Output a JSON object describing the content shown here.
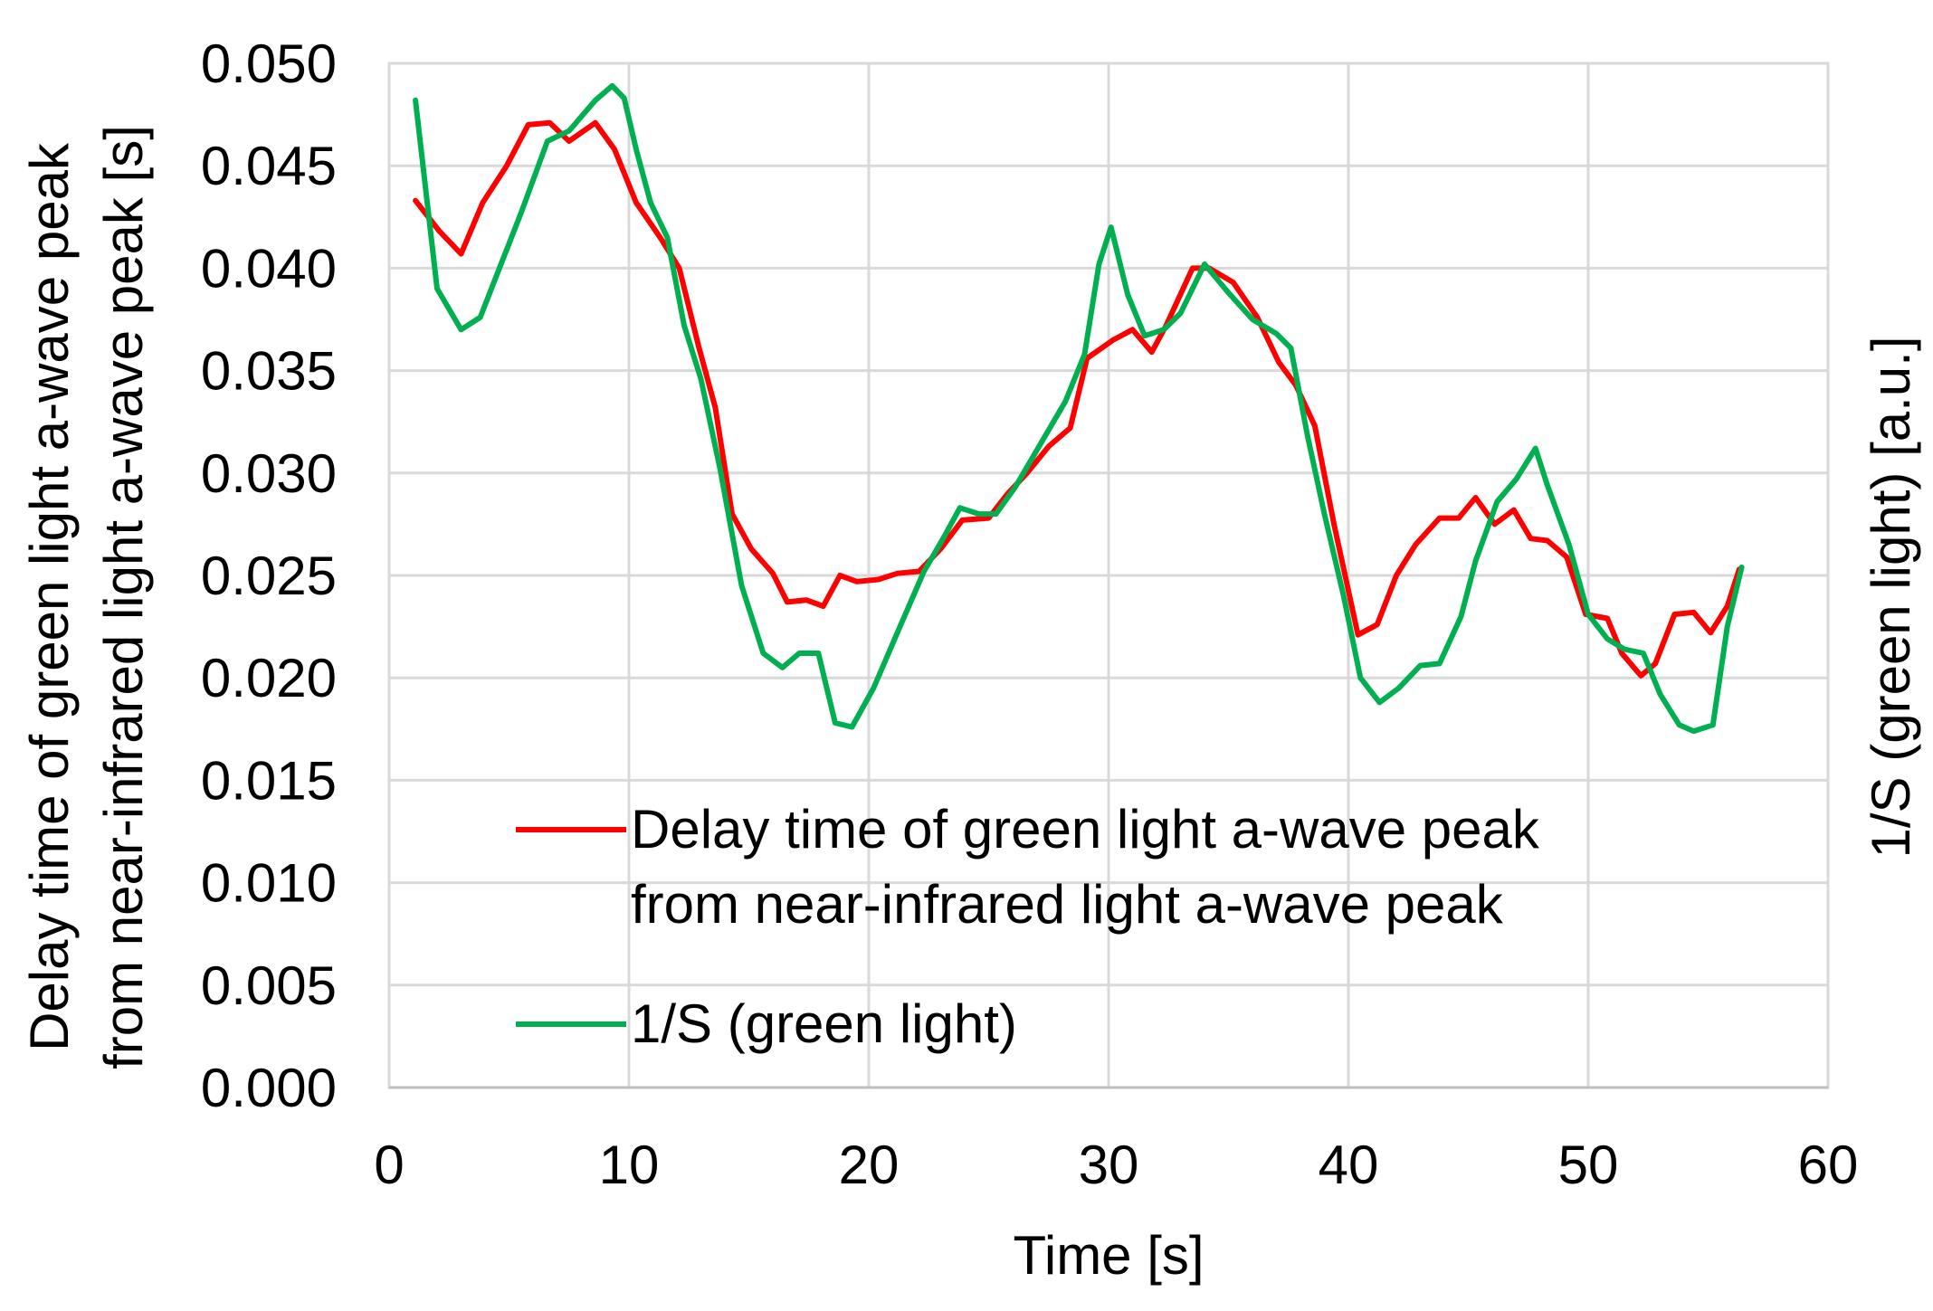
{
  "chart_data": {
    "type": "line",
    "xlabel": "Time [s]",
    "ylabel_left": [
      "Delay time of green light a-wave peak",
      "from near-infrared light a-wave peak [s]"
    ],
    "ylabel_right": "1/S (green light) [a.u.]",
    "xlim": [
      0,
      60
    ],
    "ylim": [
      0.0,
      0.05
    ],
    "x_ticks": [
      "0",
      "10",
      "20",
      "30",
      "40",
      "50",
      "60"
    ],
    "y_ticks": [
      "0.000",
      "0.005",
      "0.010",
      "0.015",
      "0.020",
      "0.025",
      "0.030",
      "0.035",
      "0.040",
      "0.045",
      "0.050"
    ],
    "grid": true,
    "legend_position": "lower-center",
    "series": [
      {
        "name": "Delay time of green light a-wave peak from near-infrared light a-wave peak",
        "color": "#ff0000",
        "points": [
          [
            1.1,
            0.0433
          ],
          [
            2.1,
            0.0418
          ],
          [
            3.0,
            0.0407
          ],
          [
            3.9,
            0.0432
          ],
          [
            4.9,
            0.045
          ],
          [
            5.8,
            0.047
          ],
          [
            6.7,
            0.0471
          ],
          [
            7.5,
            0.0462
          ],
          [
            8.6,
            0.0471
          ],
          [
            9.4,
            0.0458
          ],
          [
            10.3,
            0.0432
          ],
          [
            11.3,
            0.0415
          ],
          [
            12.1,
            0.04
          ],
          [
            12.9,
            0.0362
          ],
          [
            13.6,
            0.0332
          ],
          [
            14.3,
            0.028
          ],
          [
            15.1,
            0.0263
          ],
          [
            16.0,
            0.0251
          ],
          [
            16.6,
            0.0237
          ],
          [
            17.4,
            0.0238
          ],
          [
            18.1,
            0.0235
          ],
          [
            18.8,
            0.025
          ],
          [
            19.5,
            0.0247
          ],
          [
            20.4,
            0.0248
          ],
          [
            21.2,
            0.0251
          ],
          [
            22.1,
            0.0252
          ],
          [
            23.0,
            0.0263
          ],
          [
            23.9,
            0.0277
          ],
          [
            25.0,
            0.0278
          ],
          [
            25.8,
            0.029
          ],
          [
            26.6,
            0.03
          ],
          [
            27.5,
            0.0313
          ],
          [
            28.4,
            0.0322
          ],
          [
            29.1,
            0.0356
          ],
          [
            30.2,
            0.0365
          ],
          [
            31.0,
            0.037
          ],
          [
            31.8,
            0.0359
          ],
          [
            32.4,
            0.0372
          ],
          [
            33.5,
            0.04
          ],
          [
            34.2,
            0.04
          ],
          [
            35.2,
            0.0393
          ],
          [
            36.2,
            0.0376
          ],
          [
            37.1,
            0.0354
          ],
          [
            37.8,
            0.0343
          ],
          [
            38.6,
            0.0323
          ],
          [
            39.4,
            0.0275
          ],
          [
            40.4,
            0.0221
          ],
          [
            41.2,
            0.0226
          ],
          [
            42.0,
            0.025
          ],
          [
            42.8,
            0.0265
          ],
          [
            43.8,
            0.0278
          ],
          [
            44.6,
            0.0278
          ],
          [
            45.3,
            0.0288
          ],
          [
            46.1,
            0.0275
          ],
          [
            46.9,
            0.0282
          ],
          [
            47.6,
            0.0268
          ],
          [
            48.3,
            0.0267
          ],
          [
            49.1,
            0.0259
          ],
          [
            49.9,
            0.0231
          ],
          [
            50.8,
            0.0229
          ],
          [
            51.4,
            0.0212
          ],
          [
            52.2,
            0.0201
          ],
          [
            52.8,
            0.0207
          ],
          [
            53.6,
            0.0231
          ],
          [
            54.4,
            0.0232
          ],
          [
            55.1,
            0.0222
          ],
          [
            55.8,
            0.0235
          ],
          [
            56.3,
            0.0253
          ]
        ]
      },
      {
        "name": "1/S (green light)",
        "color": "#00b050",
        "points": [
          [
            1.1,
            0.0482
          ],
          [
            2.0,
            0.039
          ],
          [
            3.0,
            0.037
          ],
          [
            3.8,
            0.0376
          ],
          [
            4.6,
            0.04
          ],
          [
            5.5,
            0.0427
          ],
          [
            6.6,
            0.0462
          ],
          [
            7.5,
            0.0467
          ],
          [
            8.6,
            0.0482
          ],
          [
            9.3,
            0.0489
          ],
          [
            9.8,
            0.0483
          ],
          [
            10.3,
            0.0458
          ],
          [
            10.9,
            0.0432
          ],
          [
            11.6,
            0.0415
          ],
          [
            12.3,
            0.0372
          ],
          [
            13.0,
            0.0346
          ],
          [
            13.8,
            0.0302
          ],
          [
            14.7,
            0.0245
          ],
          [
            15.6,
            0.0212
          ],
          [
            16.4,
            0.0205
          ],
          [
            17.1,
            0.0212
          ],
          [
            17.9,
            0.0212
          ],
          [
            18.6,
            0.0178
          ],
          [
            19.3,
            0.0176
          ],
          [
            20.2,
            0.0195
          ],
          [
            21.3,
            0.0225
          ],
          [
            22.3,
            0.0252
          ],
          [
            23.1,
            0.0268
          ],
          [
            23.8,
            0.0283
          ],
          [
            24.6,
            0.028
          ],
          [
            25.3,
            0.028
          ],
          [
            26.1,
            0.0293
          ],
          [
            27.1,
            0.0313
          ],
          [
            28.2,
            0.0335
          ],
          [
            29.0,
            0.0358
          ],
          [
            29.6,
            0.0402
          ],
          [
            30.1,
            0.042
          ],
          [
            30.8,
            0.0387
          ],
          [
            31.5,
            0.0367
          ],
          [
            32.3,
            0.037
          ],
          [
            33.0,
            0.0378
          ],
          [
            34.0,
            0.0402
          ],
          [
            35.0,
            0.0388
          ],
          [
            36.0,
            0.0375
          ],
          [
            37.0,
            0.0368
          ],
          [
            37.6,
            0.0361
          ],
          [
            38.3,
            0.0318
          ],
          [
            39.0,
            0.028
          ],
          [
            39.8,
            0.024
          ],
          [
            40.5,
            0.02
          ],
          [
            41.3,
            0.0188
          ],
          [
            42.1,
            0.0195
          ],
          [
            43.0,
            0.0206
          ],
          [
            43.8,
            0.0207
          ],
          [
            44.7,
            0.023
          ],
          [
            45.3,
            0.0257
          ],
          [
            46.2,
            0.0286
          ],
          [
            47.0,
            0.0297
          ],
          [
            47.8,
            0.0312
          ],
          [
            48.3,
            0.0294
          ],
          [
            49.2,
            0.0265
          ],
          [
            50.0,
            0.0231
          ],
          [
            50.8,
            0.0219
          ],
          [
            51.5,
            0.0214
          ],
          [
            52.3,
            0.0212
          ],
          [
            53.0,
            0.0192
          ],
          [
            53.8,
            0.0177
          ],
          [
            54.4,
            0.0174
          ],
          [
            55.2,
            0.0177
          ],
          [
            55.8,
            0.0225
          ],
          [
            56.4,
            0.0254
          ]
        ]
      }
    ]
  }
}
